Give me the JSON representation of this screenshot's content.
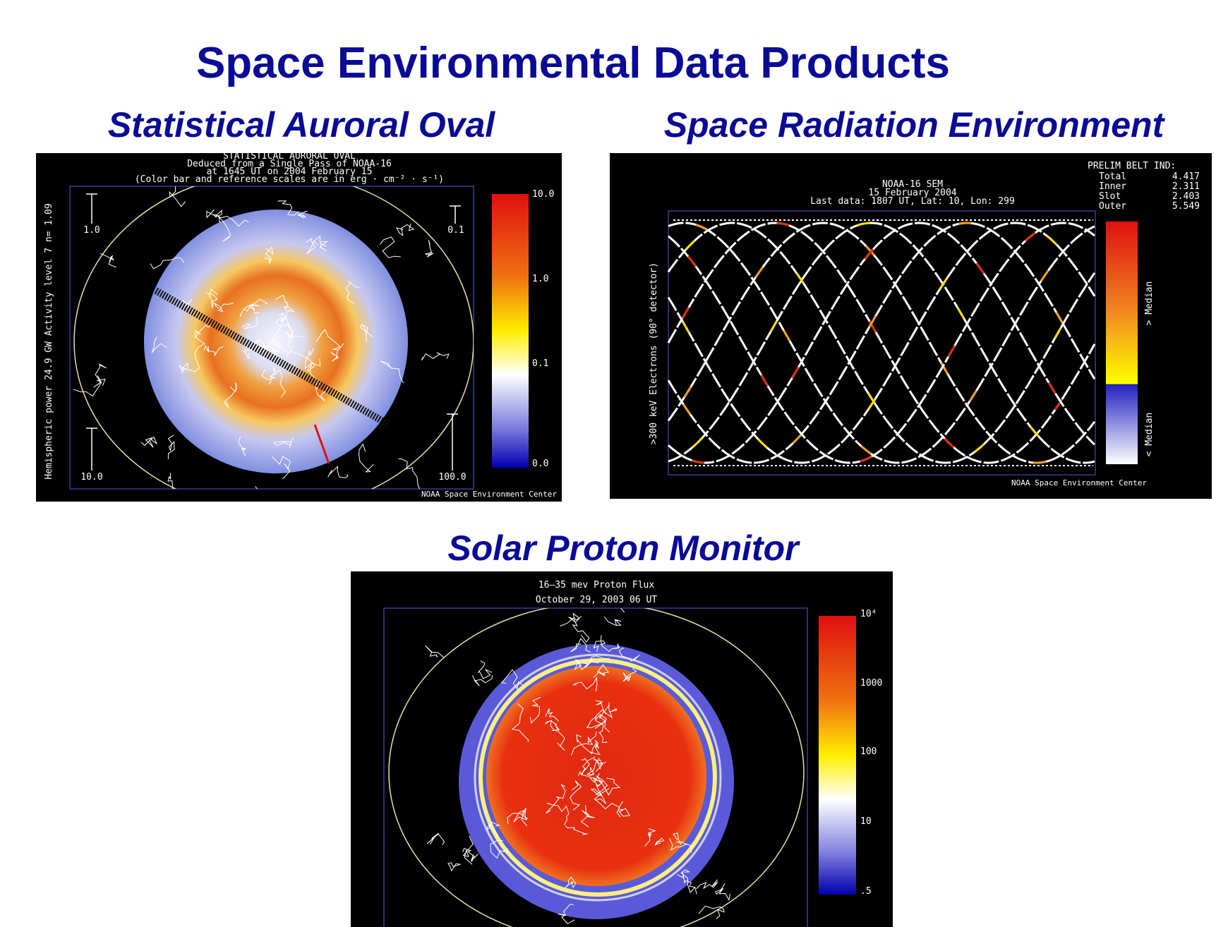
{
  "title": "Space Environmental Data Products",
  "panels": [
    {
      "heading": "Statistical Auroral Oval",
      "image": {
        "title_lines": [
          "STATISTICAL AURORAL OVAL",
          "Deduced from a Single Pass of NOAA-16",
          "at 1645 UT on 2004 February 15",
          "(Color bar and reference scales are in erg · cm⁻² · s⁻¹)"
        ],
        "side_label": "Hemispheric power 24.9 GW   Activity level 7   n= 1.09",
        "reference_scales": [
          "1.0",
          "0.1",
          "10.0",
          "100.0"
        ],
        "colorbar_labels": [
          "10.0",
          "1.0",
          "0.1",
          "0.0"
        ],
        "credit": "NOAA Space Environment Center"
      }
    },
    {
      "heading": "Space Radiation Environment",
      "image": {
        "title_lines": [
          "NOAA-16 SEM",
          "15 February 2004",
          "Last data: 1807 UT, Lat: 10, Lon: 299"
        ],
        "belt_index": {
          "title": "PRELIM BELT IND:",
          "rows": [
            [
              "Total",
              "4.417"
            ],
            [
              "Inner",
              "2.311"
            ],
            [
              "Slot",
              "2.403"
            ],
            [
              "Outer",
              "5.549"
            ]
          ]
        },
        "y_label": ">300 keV Electrons (90° detector)",
        "colorbar_labels": [
          "> Median",
          "< Median"
        ],
        "credit": "NOAA Space Environment Center"
      }
    },
    {
      "heading": "Solar Proton Monitor",
      "image": {
        "title_lines": [
          "16–35 mev Proton Flux",
          "October 29, 2003  06 UT"
        ],
        "colorbar_labels": [
          "10⁴",
          "1000",
          "100",
          "10",
          ".5"
        ]
      }
    }
  ]
}
